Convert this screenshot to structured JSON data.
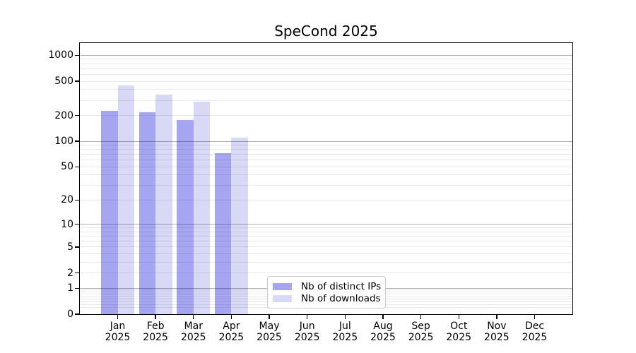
{
  "title": "SpeCond 2025",
  "chart_data": {
    "type": "bar",
    "title": "SpeCond 2025",
    "categories": [
      "Jan",
      "Feb",
      "Mar",
      "Apr",
      "May",
      "Jun",
      "Jul",
      "Aug",
      "Sep",
      "Oct",
      "Nov",
      "Dec"
    ],
    "year": "2025",
    "series": [
      {
        "name": "Nb of distinct IPs",
        "color": "#a5a5f2",
        "values": [
          225,
          218,
          177,
          73,
          null,
          null,
          null,
          null,
          null,
          null,
          null,
          null
        ]
      },
      {
        "name": "Nb of downloads",
        "color": "#d8d8f7",
        "values": [
          450,
          348,
          287,
          110,
          null,
          null,
          null,
          null,
          null,
          null,
          null,
          null
        ]
      }
    ],
    "y_ticks": [
      0,
      1,
      2,
      5,
      10,
      20,
      50,
      100,
      200,
      500,
      1000
    ],
    "y_scale": "log10(1+x)",
    "ylim": [
      0,
      1390
    ],
    "grid": "horizontal major and minor gridlines",
    "legend_position": "lower center-left inside plot"
  }
}
